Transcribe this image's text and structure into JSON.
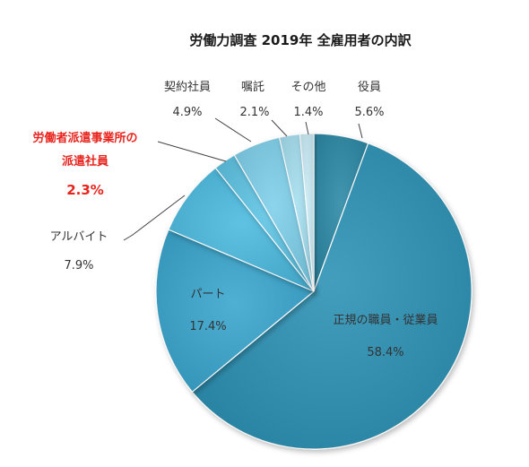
{
  "chart_data": {
    "type": "pie",
    "title": "労働力調査 2019年 全雇用者の内訳",
    "unit": "%",
    "start_angle_deg": 0,
    "direction": "clockwise",
    "highlight_color": "#e8241e",
    "slices": [
      {
        "name": "役員",
        "value": 5.6,
        "value_label": "5.6%",
        "color": "#2e8aa6"
      },
      {
        "name": "正規の職員・従業員",
        "value": 58.4,
        "value_label": "58.4%",
        "color": "#2e93b6"
      },
      {
        "name": "パート",
        "value": 17.4,
        "value_label": "17.4%",
        "color": "#3aa7cf"
      },
      {
        "name": "アルバイト",
        "value": 7.9,
        "value_label": "7.9%",
        "color": "#4dbbe0"
      },
      {
        "name": "労働者派遣事業所の派遣社員",
        "name_lines": [
          "労働者派遣事業所の",
          "派遣社員"
        ],
        "value": 2.3,
        "value_label": "2.3%",
        "color": "#5ec4e4",
        "highlight": true
      },
      {
        "name": "契約社員",
        "value": 4.9,
        "value_label": "4.9%",
        "color": "#7fd0ea"
      },
      {
        "name": "嘱託",
        "value": 2.1,
        "value_label": "2.1%",
        "color": "#a6dff0"
      },
      {
        "name": "その他",
        "value": 1.4,
        "value_label": "1.4%",
        "color": "#c9ebf5"
      }
    ]
  }
}
